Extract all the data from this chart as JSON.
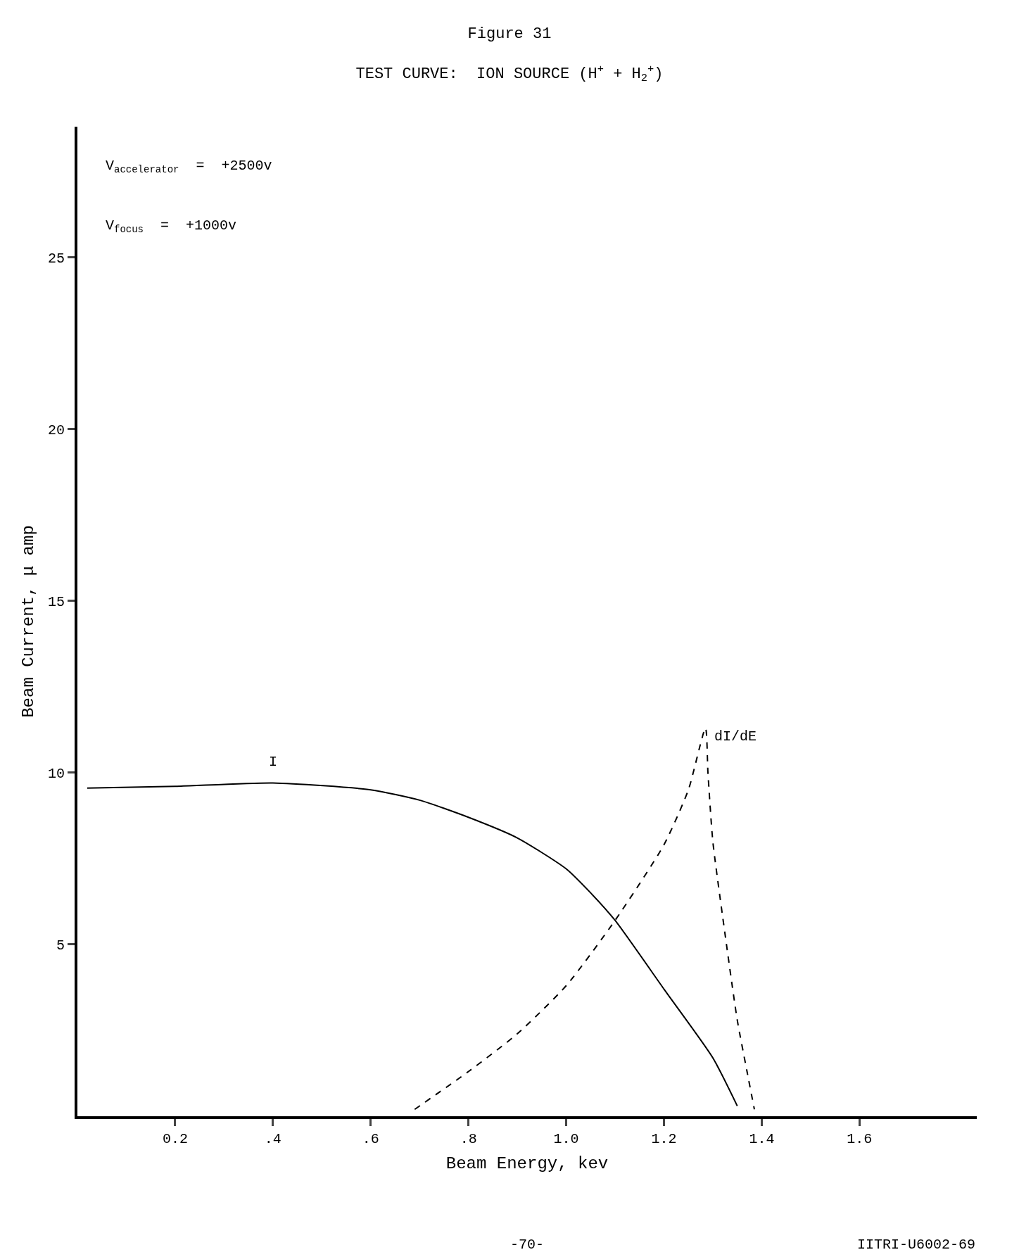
{
  "chart_data": {
    "type": "line",
    "title": "Figure 31",
    "subtitle": "TEST CURVE:  ION SOURCE (H$^{+}$ + H$_{2}$$^{+}$)",
    "xlabel": "Beam Energy, kev",
    "ylabel": "Beam Current, μ amp",
    "xlim": [
      0,
      1.84
    ],
    "ylim": [
      0,
      28.8
    ],
    "xticks": [
      {
        "value": 0.2,
        "label": "0.2"
      },
      {
        "value": 0.4,
        "label": ".4"
      },
      {
        "value": 0.6,
        "label": ".6"
      },
      {
        "value": 0.8,
        "label": ".8"
      },
      {
        "value": 1.0,
        "label": "1.0"
      },
      {
        "value": 1.2,
        "label": "1.2"
      },
      {
        "value": 1.4,
        "label": "1.4"
      },
      {
        "value": 1.6,
        "label": "1.6"
      }
    ],
    "yticks": [
      5,
      10,
      15,
      20,
      25
    ],
    "grid": false,
    "legend": false,
    "series": [
      {
        "name": "I",
        "color": "#000000",
        "line_style": "solid",
        "x": [
          0.02,
          0.2,
          0.4,
          0.6,
          0.7,
          0.8,
          0.9,
          1.0,
          1.05,
          1.1,
          1.2,
          1.3,
          1.35
        ],
        "values": [
          9.55,
          9.6,
          9.7,
          9.5,
          9.2,
          8.7,
          8.1,
          7.2,
          6.5,
          5.7,
          3.7,
          1.7,
          0.3
        ]
      },
      {
        "name": "dI/dE",
        "color": "#000000",
        "line_style": "dashed",
        "x": [
          0.69,
          0.8,
          0.9,
          1.0,
          1.1,
          1.2,
          1.25,
          1.285,
          1.29,
          1.3,
          1.325,
          1.35,
          1.37,
          1.385
        ],
        "values": [
          0.2,
          1.3,
          2.4,
          3.8,
          5.7,
          7.9,
          9.5,
          11.3,
          10.0,
          8.0,
          5.3,
          2.8,
          1.3,
          0.2
        ]
      }
    ],
    "annotations": [
      "V$_{accelerator}$  =  +2500v",
      "V$_{focus}$  =  +1000v",
      "-70-",
      "IITRI-U6002-69"
    ]
  }
}
